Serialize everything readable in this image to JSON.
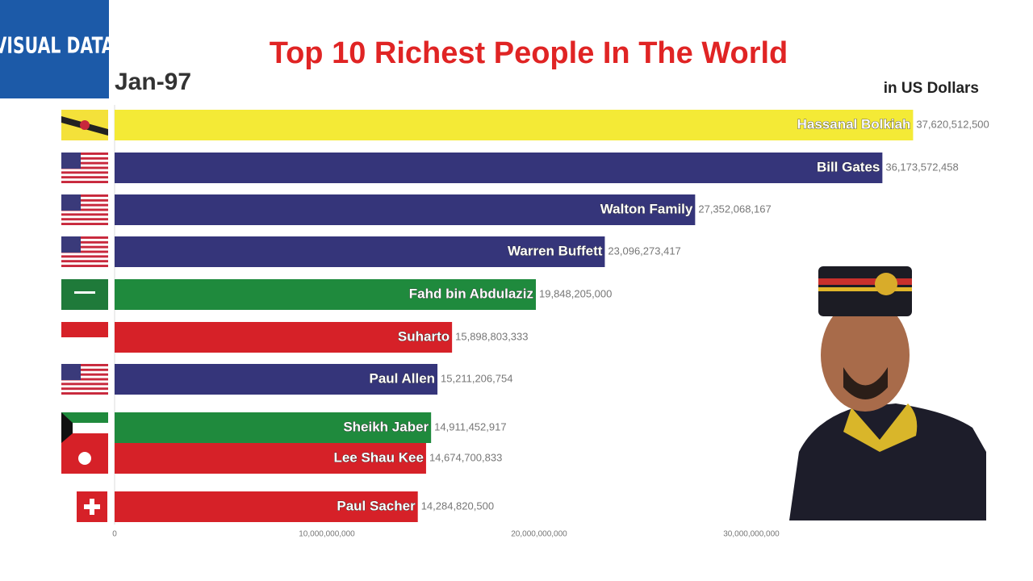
{
  "chart_data": {
    "type": "bar",
    "logo": "VISUAL DATA",
    "title": "Top 10 Richest People In The World",
    "date": "Jan-97",
    "subtitle": "in US Dollars",
    "categories": [
      "Hassanal Bolkiah",
      "Bill Gates",
      "Walton Family",
      "Warren Buffett",
      "Fahd bin Abdulaziz",
      "Suharto",
      "Paul Allen",
      "Sheikh Jaber",
      "Lee Shau Kee",
      "Paul Sacher"
    ],
    "values": [
      37620512500,
      36173572458,
      27352068167,
      23096273417,
      19848205000,
      15898803333,
      15211206754,
      14911452917,
      14674700833,
      14284820500
    ],
    "value_labels": [
      "37,620,512,500",
      "36,173,572,458",
      "27,352,068,167",
      "23,096,273,417",
      "19,848,205,000",
      "15,898,803,333",
      "15,211,206,754",
      "14,911,452,917",
      "14,674,700,833",
      "14,284,820,500"
    ],
    "colors": [
      "#f4ea36",
      "#35357a",
      "#35357a",
      "#35357a",
      "#1f8a3d",
      "#d62128",
      "#35357a",
      "#1f8a3d",
      "#d62128",
      "#d62128"
    ],
    "xlim": [
      0,
      40000000000
    ],
    "xticks": [
      0,
      {
        "value": 10000000000,
        "label": "10,000,000,000"
      },
      {
        "value": 20000000000,
        "label": "20,000,000,000"
      },
      {
        "value": 30000000000,
        "label": "30,000,000,000"
      }
    ]
  }
}
